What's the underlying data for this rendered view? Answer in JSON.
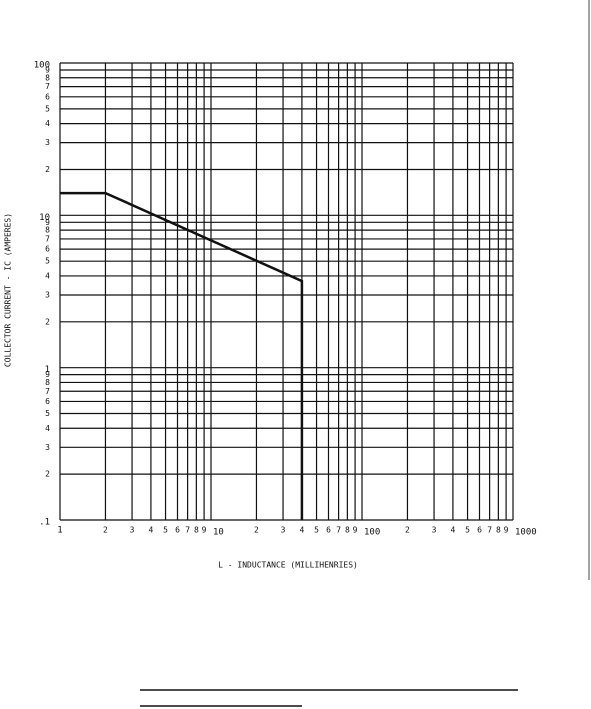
{
  "chart_data": {
    "type": "line",
    "xlabel": "L - INDUCTANCE (MILLIHENRIES)",
    "ylabel": "COLLECTOR CURRENT - IC (AMPERES)",
    "x": [
      1,
      2,
      40,
      40
    ],
    "values": [
      14,
      14,
      3.7,
      0.1
    ],
    "color": "#111111",
    "xscale": "log",
    "yscale": "log",
    "grid": true,
    "xlim": [
      1,
      1000
    ],
    "ylim": [
      0.1,
      100
    ],
    "xticks": [
      1,
      2,
      3,
      4,
      5,
      6,
      7,
      8,
      9,
      10,
      {
        "value": 20,
        "label": "2"
      },
      {
        "value": 30,
        "label": "3"
      },
      {
        "value": 40,
        "label": "4"
      },
      {
        "value": 50,
        "label": "5"
      },
      {
        "value": 60,
        "label": "6"
      },
      {
        "value": 70,
        "label": "7"
      },
      {
        "value": 80,
        "label": "8"
      },
      {
        "value": 90,
        "label": "9"
      },
      100,
      {
        "value": 200,
        "label": "2"
      },
      {
        "value": 300,
        "label": "3"
      },
      {
        "value": 400,
        "label": "4"
      },
      {
        "value": 500,
        "label": "5"
      },
      {
        "value": 600,
        "label": "6"
      },
      {
        "value": 700,
        "label": "7"
      },
      {
        "value": 800,
        "label": "8"
      },
      {
        "value": 900,
        "label": "9"
      },
      1000
    ],
    "yticks": [
      {
        "value": 0.1,
        "label": ".1"
      },
      {
        "value": 0.2,
        "label": "2"
      },
      {
        "value": 0.3,
        "label": "3"
      },
      {
        "value": 0.4,
        "label": "4"
      },
      {
        "value": 0.5,
        "label": "5"
      },
      {
        "value": 0.6,
        "label": "6"
      },
      {
        "value": 0.7,
        "label": "7"
      },
      {
        "value": 0.8,
        "label": "8"
      },
      {
        "value": 0.9,
        "label": "9"
      },
      1,
      2,
      3,
      4,
      5,
      6,
      7,
      8,
      9,
      10,
      {
        "value": 20,
        "label": "2"
      },
      {
        "value": 30,
        "label": "3"
      },
      {
        "value": 40,
        "label": "4"
      },
      {
        "value": 50,
        "label": "5"
      },
      {
        "value": 60,
        "label": "6"
      },
      {
        "value": 70,
        "label": "7"
      },
      {
        "value": 80,
        "label": "8"
      },
      {
        "value": 90,
        "label": "9"
      },
      100
    ]
  }
}
